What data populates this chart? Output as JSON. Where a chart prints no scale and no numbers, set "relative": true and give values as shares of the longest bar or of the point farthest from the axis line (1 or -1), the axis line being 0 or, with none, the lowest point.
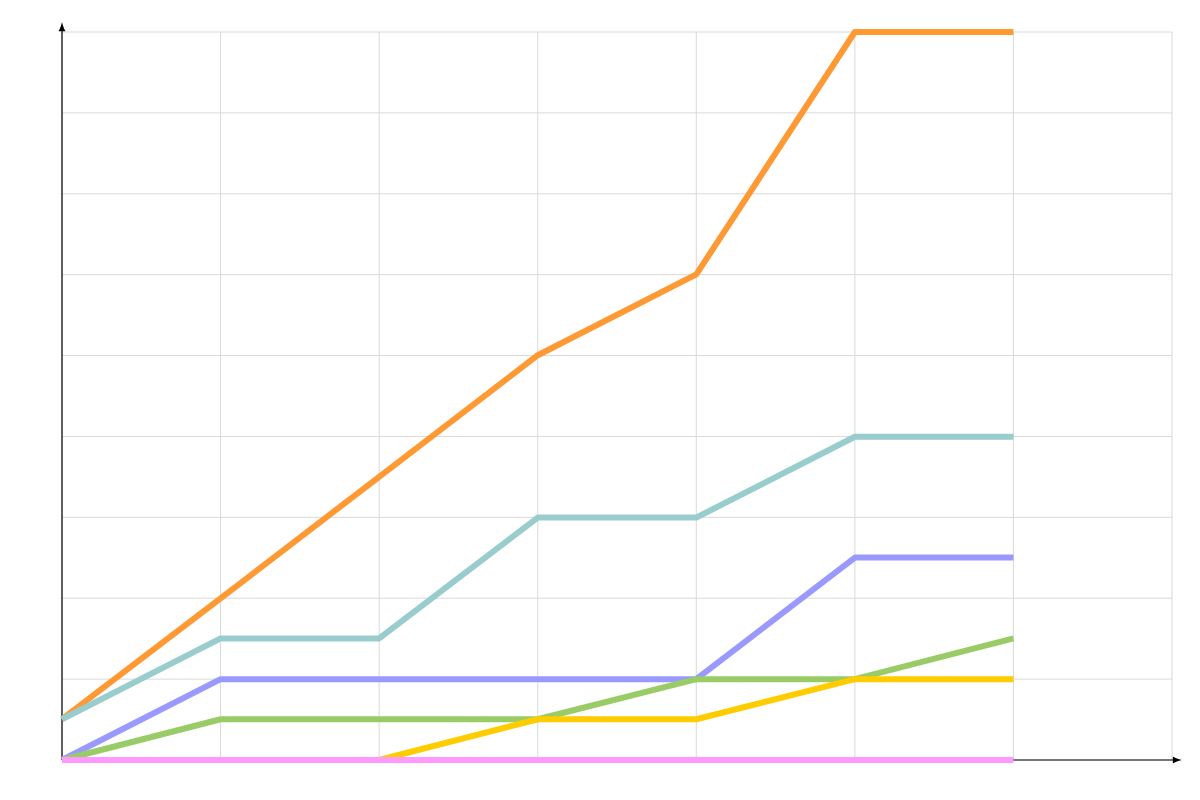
{
  "chart_data": {
    "type": "line",
    "relative": true,
    "grid": true,
    "marker": "none",
    "line_style": "solid",
    "categories": [
      null,
      null,
      null,
      null,
      null,
      null,
      null,
      null
    ],
    "series": [
      {
        "color": "#ff9933",
        "values": [
          0.056,
          0.222,
          0.389,
          0.556,
          0.667,
          1,
          1,
          null
        ]
      },
      {
        "color": "#99cccc",
        "values": [
          0.056,
          0.167,
          0.167,
          0.333,
          0.333,
          0.444,
          0.444,
          null
        ]
      },
      {
        "color": "#9999ff",
        "values": [
          0,
          0.111,
          0.111,
          0.111,
          0.111,
          0.278,
          0.278,
          null
        ]
      },
      {
        "color": "#99cc66",
        "values": [
          0,
          0.056,
          0.056,
          0.056,
          0.111,
          0.111,
          0.167,
          null
        ]
      },
      {
        "color": "#ffcc00",
        "values": [
          0,
          0,
          0,
          0.056,
          0.056,
          0.111,
          0.111,
          null
        ]
      },
      {
        "color": "#ff99ff",
        "values": [
          0,
          0,
          0,
          0,
          0,
          0,
          0,
          null
        ]
      }
    ]
  }
}
